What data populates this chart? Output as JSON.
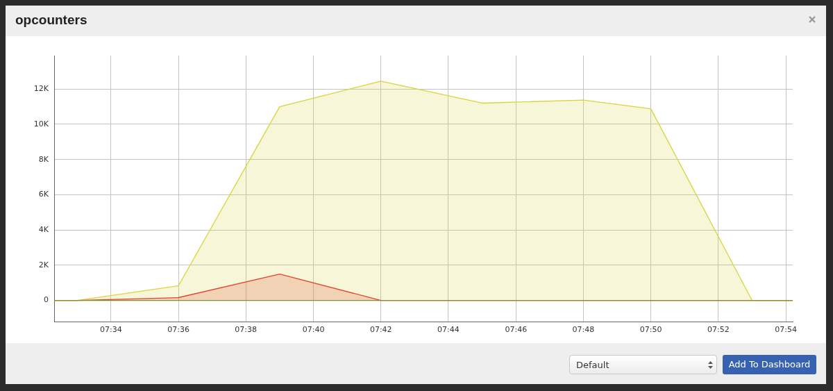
{
  "chart_data": {
    "type": "area",
    "title": "opcounters",
    "x": [
      7.5386,
      7.55,
      7.6,
      7.65,
      7.7,
      7.75,
      7.8,
      7.8333,
      7.8833,
      7.9034
    ],
    "series": [
      {
        "color": "#d8d43a",
        "values": [
          0,
          0,
          830,
          11000,
          12450,
          11200,
          11370,
          10880,
          0,
          0
        ]
      },
      {
        "color": "#e0462c",
        "values": [
          0,
          0,
          160,
          1500,
          0,
          0,
          0,
          0,
          0,
          0
        ]
      },
      {
        "type": "line",
        "color": "#8a8a2f",
        "values": [
          0,
          0,
          0,
          0,
          0,
          0,
          0,
          0,
          0,
          0
        ]
      }
    ],
    "xlim": [
      7.5386,
      7.9034
    ],
    "xticks": [
      {
        "value": 7.5667,
        "label": "07:34"
      },
      {
        "value": 7.6,
        "label": "07:36"
      },
      {
        "value": 7.6333,
        "label": "07:38"
      },
      {
        "value": 7.6667,
        "label": "07:40"
      },
      {
        "value": 7.7,
        "label": "07:42"
      },
      {
        "value": 7.7333,
        "label": "07:44"
      },
      {
        "value": 7.7667,
        "label": "07:46"
      },
      {
        "value": 7.8,
        "label": "07:48"
      },
      {
        "value": 7.8333,
        "label": "07:50"
      },
      {
        "value": 7.8667,
        "label": "07:52"
      },
      {
        "value": 7.9,
        "label": "07:54"
      }
    ],
    "ylim": [
      -1200,
      13900
    ],
    "yticks": [
      0,
      {
        "value": 2000,
        "label": "2K"
      },
      {
        "value": 4000,
        "label": "4K"
      },
      {
        "value": 6000,
        "label": "6K"
      },
      {
        "value": 8000,
        "label": "8K"
      },
      {
        "value": 10000,
        "label": "10K"
      },
      {
        "value": 12000,
        "label": "12K"
      }
    ],
    "grid": true,
    "legend": false,
    "marker": "none",
    "annotations": [
      "Default",
      "Add To Dashboard"
    ]
  }
}
